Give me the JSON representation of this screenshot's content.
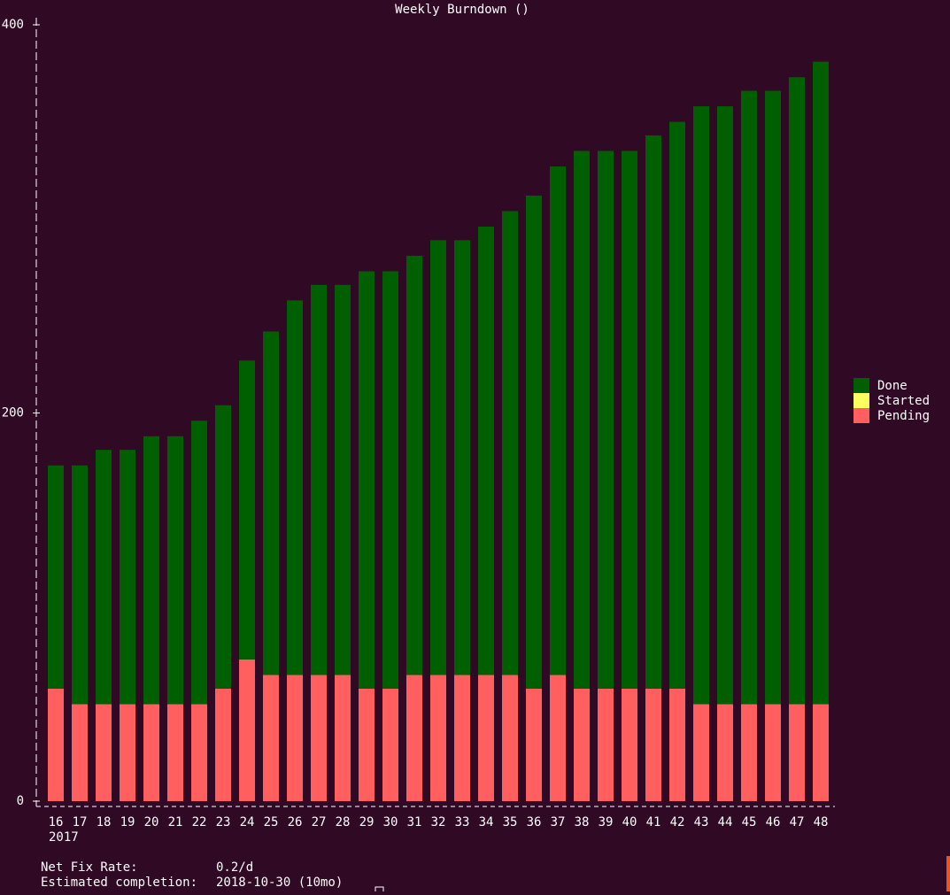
{
  "chart_data": {
    "type": "bar",
    "stacked": true,
    "title": "Weekly Burndown ()",
    "categories": [
      "16",
      "17",
      "18",
      "19",
      "20",
      "21",
      "22",
      "23",
      "24",
      "25",
      "26",
      "27",
      "28",
      "29",
      "30",
      "31",
      "32",
      "33",
      "34",
      "35",
      "36",
      "37",
      "38",
      "39",
      "40",
      "41",
      "42",
      "43",
      "44",
      "45",
      "46",
      "47",
      "48"
    ],
    "year_label": "2017",
    "series": [
      {
        "name": "Pending",
        "color": "#ff5f5f",
        "values": [
          58,
          50,
          50,
          50,
          50,
          50,
          50,
          58,
          73,
          65,
          65,
          65,
          65,
          58,
          58,
          65,
          65,
          65,
          65,
          65,
          58,
          65,
          58,
          58,
          58,
          58,
          58,
          50,
          50,
          50,
          50,
          50,
          50
        ]
      },
      {
        "name": "Started",
        "color": "#ffff5f",
        "values": [
          0,
          0,
          0,
          0,
          0,
          0,
          0,
          0,
          0,
          0,
          0,
          0,
          0,
          0,
          0,
          0,
          0,
          0,
          0,
          0,
          0,
          0,
          0,
          0,
          0,
          0,
          0,
          0,
          0,
          0,
          0,
          0,
          0
        ]
      },
      {
        "name": "Done",
        "color": "#005f00",
        "values": [
          115,
          123,
          131,
          131,
          138,
          138,
          146,
          146,
          154,
          177,
          193,
          201,
          201,
          215,
          215,
          216,
          224,
          224,
          231,
          239,
          254,
          262,
          277,
          277,
          277,
          285,
          292,
          308,
          308,
          316,
          316,
          323,
          331
        ]
      }
    ],
    "ylim": [
      0,
      400
    ],
    "yticks": [
      0,
      200,
      400
    ],
    "legend_order": [
      "Done",
      "Started",
      "Pending"
    ]
  },
  "footer": {
    "rows": [
      [
        "Net Fix Rate:",
        "0.2/d"
      ],
      [
        "Estimated completion:",
        "2018-10-30 (10mo)"
      ]
    ]
  }
}
